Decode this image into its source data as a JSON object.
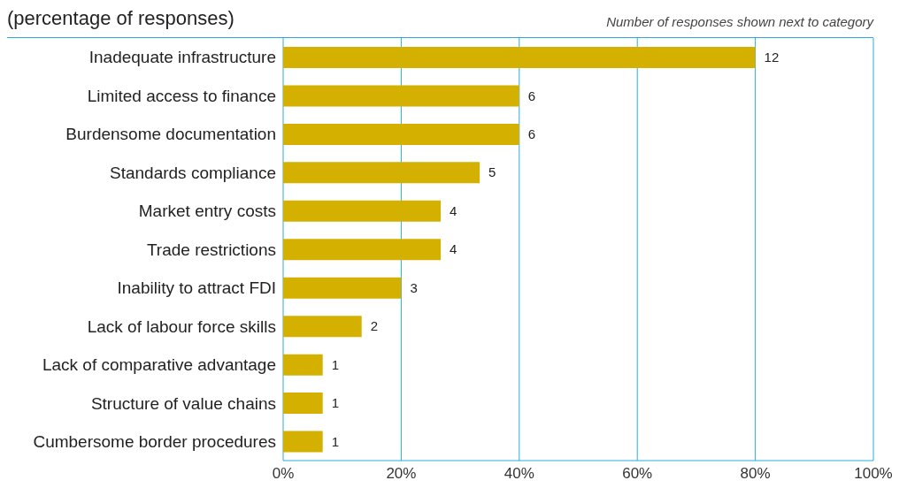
{
  "chart_data": {
    "type": "bar",
    "orientation": "horizontal",
    "title": "(percentage of responses)",
    "annotations": [
      "Number of responses shown next to category",
      {
        "text": "12",
        "x": 80,
        "y": "Inadequate infrastructure"
      },
      {
        "text": "6",
        "x": 40,
        "y": "Limited access to finance"
      },
      {
        "text": "6",
        "x": 40,
        "y": "Burdensome documentation"
      },
      {
        "text": "5",
        "x": 33.3,
        "y": "Standards compliance"
      },
      {
        "text": "4",
        "x": 26.7,
        "y": "Market entry costs"
      },
      {
        "text": "4",
        "x": 26.7,
        "y": "Trade restrictions"
      },
      {
        "text": "3",
        "x": 20,
        "y": "Inability to attract FDI"
      },
      {
        "text": "2",
        "x": 13.3,
        "y": "Lack of labour force skills"
      },
      {
        "text": "1",
        "x": 6.7,
        "y": "Lack of comparative advantage"
      },
      {
        "text": "1",
        "x": 6.7,
        "y": "Structure of value chains"
      },
      {
        "text": "1",
        "x": 6.7,
        "y": "Cumbersome border procedures"
      }
    ],
    "categories": [
      "Inadequate infrastructure",
      "Limited access to finance",
      "Burdensome documentation",
      "Standards compliance",
      "Market entry costs",
      "Trade restrictions",
      "Inability to attract FDI",
      "Lack of labour force skills",
      "Lack of comparative advantage",
      "Structure of value chains",
      "Cumbersome border procedures"
    ],
    "values": [
      80,
      40,
      40,
      33.3,
      26.7,
      26.7,
      20,
      13.3,
      6.7,
      6.7,
      6.7
    ],
    "color": "#d4b000",
    "xlim": [
      0,
      100
    ],
    "xticks": [
      {
        "value": 0,
        "label": "0%"
      },
      {
        "value": 20,
        "label": "20%"
      },
      {
        "value": 40,
        "label": "40%"
      },
      {
        "value": 60,
        "label": "60%"
      },
      {
        "value": 80,
        "label": "80%"
      },
      {
        "value": 100,
        "label": "100%"
      }
    ],
    "grid": "x"
  }
}
